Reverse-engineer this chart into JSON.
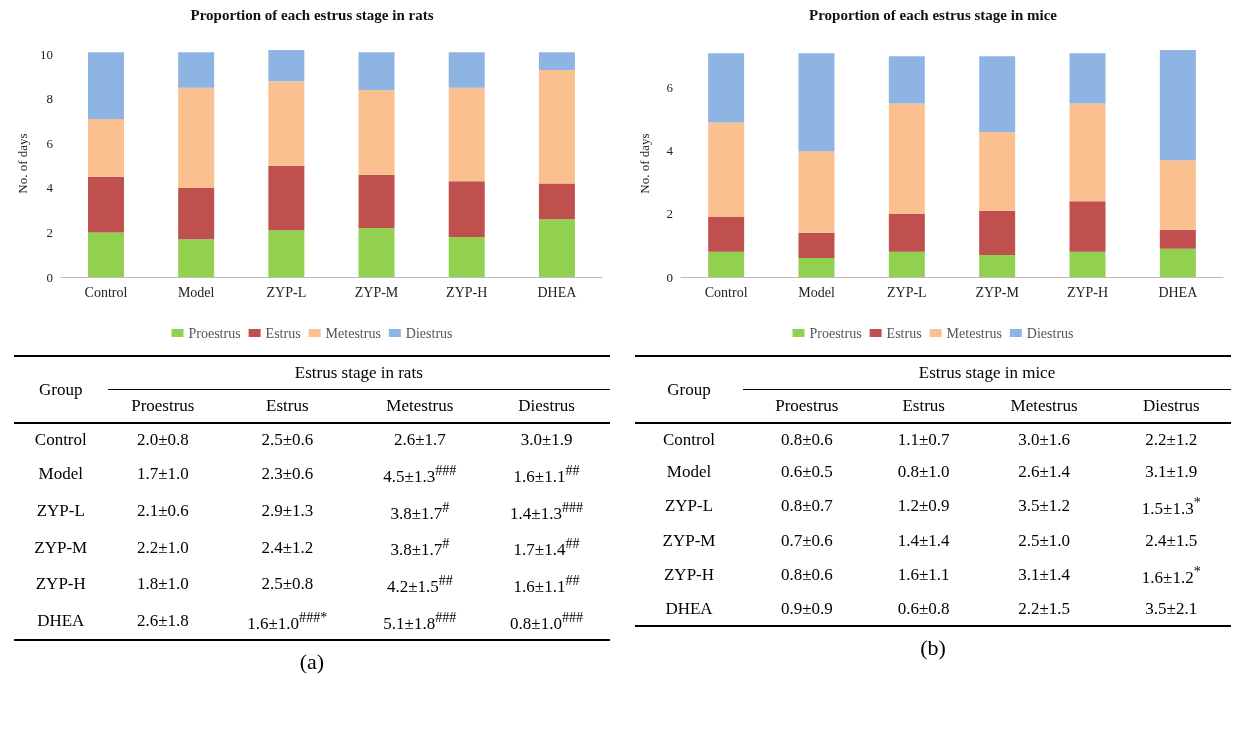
{
  "chart_data": [
    {
      "type": "bar",
      "title": "Proportion of each estrus stage in rats",
      "ylabel": "No. of days",
      "categories": [
        "Control",
        "Model",
        "ZYP-L",
        "ZYP-M",
        "ZYP-H",
        "DHEA"
      ],
      "stacked": true,
      "ylim": [
        0,
        10.2
      ],
      "yticks": [
        0,
        2,
        4,
        6,
        8,
        10
      ],
      "grid": false,
      "legend": "bottom",
      "series": [
        {
          "name": "Proestrus",
          "color": "#92d050",
          "values": [
            2.0,
            1.7,
            2.1,
            2.2,
            1.8,
            2.6
          ]
        },
        {
          "name": "Estrus",
          "color": "#c0504d",
          "values": [
            2.5,
            2.3,
            2.9,
            2.4,
            2.5,
            1.6
          ]
        },
        {
          "name": "Metestrus",
          "color": "#fac090",
          "values": [
            2.6,
            4.5,
            3.8,
            3.8,
            4.2,
            5.1
          ]
        },
        {
          "name": "Diestrus",
          "color": "#8eb4e3",
          "values": [
            3.0,
            1.6,
            1.4,
            1.7,
            1.6,
            0.8
          ]
        }
      ]
    },
    {
      "type": "bar",
      "title": "Proportion of each estrus stage in mice",
      "ylabel": "No. of days",
      "categories": [
        "Control",
        "Model",
        "ZYP-L",
        "ZYP-M",
        "ZYP-H",
        "DHEA"
      ],
      "stacked": true,
      "ylim": [
        0,
        7.2
      ],
      "yticks": [
        0,
        2,
        4,
        6
      ],
      "grid": false,
      "legend": "bottom",
      "series": [
        {
          "name": "Proestrus",
          "color": "#92d050",
          "values": [
            0.8,
            0.6,
            0.8,
            0.7,
            0.8,
            0.9
          ]
        },
        {
          "name": "Estrus",
          "color": "#c0504d",
          "values": [
            1.1,
            0.8,
            1.2,
            1.4,
            1.6,
            0.6
          ]
        },
        {
          "name": "Metestrus",
          "color": "#fac090",
          "values": [
            3.0,
            2.6,
            3.5,
            2.5,
            3.1,
            2.2
          ]
        },
        {
          "name": "Diestrus",
          "color": "#8eb4e3",
          "values": [
            2.2,
            3.1,
            1.5,
            2.4,
            1.6,
            3.5
          ]
        }
      ]
    },
    {
      "type": "other",
      "title": "Estrus stage in rats",
      "annotations": [
        "Group",
        "(a)"
      ],
      "categories": [
        "Proestrus",
        "Estrus",
        "Metestrus",
        "Diestrus"
      ],
      "y_categories": [
        "Control",
        "Model",
        "ZYP-L",
        "ZYP-M",
        "ZYP-H",
        "DHEA"
      ],
      "cell_labels": [
        [
          "2.0±0.8",
          "2.5±0.6",
          "2.6±1.7",
          "3.0±1.9"
        ],
        [
          "1.7±1.0",
          "2.3±0.6",
          "4.5±1.3$^{###}$",
          "1.6±1.1$^{##}$"
        ],
        [
          "2.1±0.6",
          "2.9±1.3",
          "3.8±1.7$^{#}$",
          "1.4±1.3$^{###}$"
        ],
        [
          "2.2±1.0",
          "2.4±1.2",
          "3.8±1.7$^{#}$",
          "1.7±1.4$^{##}$"
        ],
        [
          "1.8±1.0",
          "2.5±0.8",
          "4.2±1.5$^{##}$",
          "1.6±1.1$^{##}$"
        ],
        [
          "2.6±1.8",
          "1.6±1.0$^{###*}$",
          "5.1±1.8$^{###}$",
          "0.8±1.0$^{###}$"
        ]
      ]
    },
    {
      "type": "other",
      "title": "Estrus stage in mice",
      "annotations": [
        "Group",
        "(b)"
      ],
      "categories": [
        "Proestrus",
        "Estrus",
        "Metestrus",
        "Diestrus"
      ],
      "y_categories": [
        "Control",
        "Model",
        "ZYP-L",
        "ZYP-M",
        "ZYP-H",
        "DHEA"
      ],
      "cell_labels": [
        [
          "0.8±0.6",
          "1.1±0.7",
          "3.0±1.6",
          "2.2±1.2"
        ],
        [
          "0.6±0.5",
          "0.8±1.0",
          "2.6±1.4",
          "3.1±1.9"
        ],
        [
          "0.8±0.7",
          "1.2±0.9",
          "3.5±1.2",
          "1.5±1.3$^{*}$"
        ],
        [
          "0.7±0.6",
          "1.4±1.4",
          "2.5±1.0",
          "2.4±1.5"
        ],
        [
          "0.8±0.6",
          "1.6±1.1",
          "3.1±1.4",
          "1.6±1.2$^{*}$"
        ],
        [
          "0.9±0.9",
          "0.6±0.8",
          "2.2±1.5",
          "3.5±2.1"
        ]
      ]
    }
  ]
}
